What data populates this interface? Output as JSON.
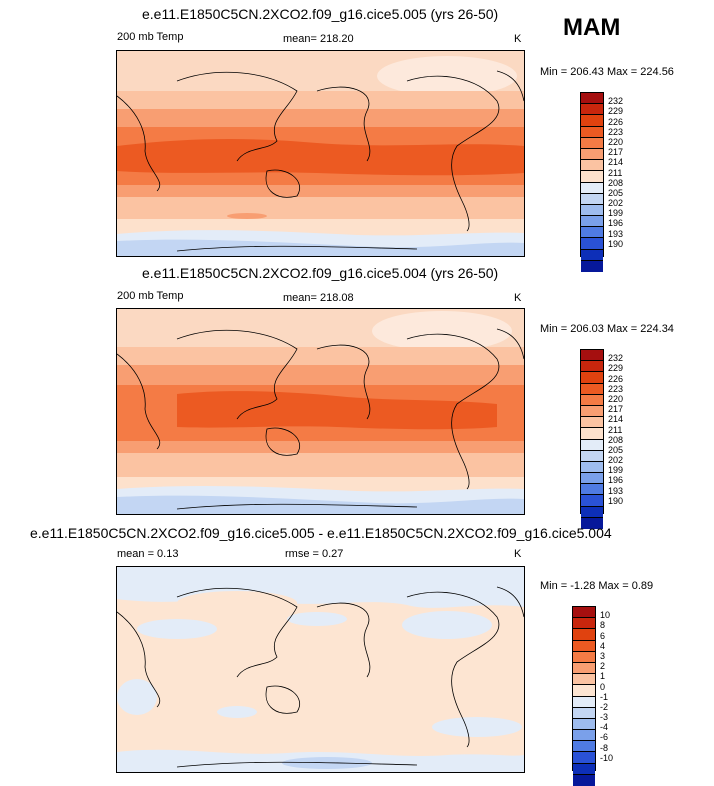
{
  "season": "MAM",
  "panels": [
    {
      "title": "e.e11.E1850C5CN.2XCO2.f09_g16.cice5.005 (yrs 26-50)",
      "variable": "200 mb Temp",
      "stat_center": "mean= 218.20",
      "unit": "K",
      "minmax": "Min = 206.43 Max = 224.56"
    },
    {
      "title": "e.e11.E1850C5CN.2XCO2.f09_g16.cice5.004 (yrs 26-50)",
      "variable": "200 mb Temp",
      "stat_center": "mean= 218.08",
      "unit": "K",
      "minmax": "Min = 206.03 Max = 224.34"
    },
    {
      "title": "e.e11.E1850C5CN.2XCO2.f09_g16.cice5.005 - e.e11.E1850C5CN.2XCO2.f09_g16.cice5.004",
      "variable": "mean =   0.13",
      "stat_center": "rmse =   0.27",
      "unit": "K",
      "minmax": "Min =  -1.28 Max =    0.89"
    }
  ],
  "abs_colorbar": {
    "labels": [
      "232",
      "229",
      "226",
      "223",
      "220",
      "217",
      "214",
      "211",
      "208",
      "205",
      "202",
      "199",
      "196",
      "193",
      "190"
    ],
    "colors": [
      "#a50f0f",
      "#c8260d",
      "#e0420f",
      "#ec5a22",
      "#f47b45",
      "#f89e72",
      "#fbc3a2",
      "#fde1cc",
      "#e3ecf8",
      "#c3d6f3",
      "#9ebcee",
      "#7aa0ea",
      "#4f7be3",
      "#2a52d6",
      "#0d2fb8",
      "#06189a"
    ]
  },
  "diff_colorbar": {
    "labels": [
      "10",
      "8",
      "6",
      "4",
      "3",
      "2",
      "1",
      "0",
      "-1",
      "-2",
      "-3",
      "-4",
      "-6",
      "-8",
      "-10"
    ],
    "colors": [
      "#a50f0f",
      "#c8260d",
      "#e0420f",
      "#ec5a22",
      "#f47b45",
      "#f89e72",
      "#fbc3a2",
      "#fde5d2",
      "#e3ecf8",
      "#c3d6f3",
      "#9ebcee",
      "#7aa0ea",
      "#4f7be3",
      "#2a52d6",
      "#0d2fb8",
      "#06189a"
    ]
  }
}
